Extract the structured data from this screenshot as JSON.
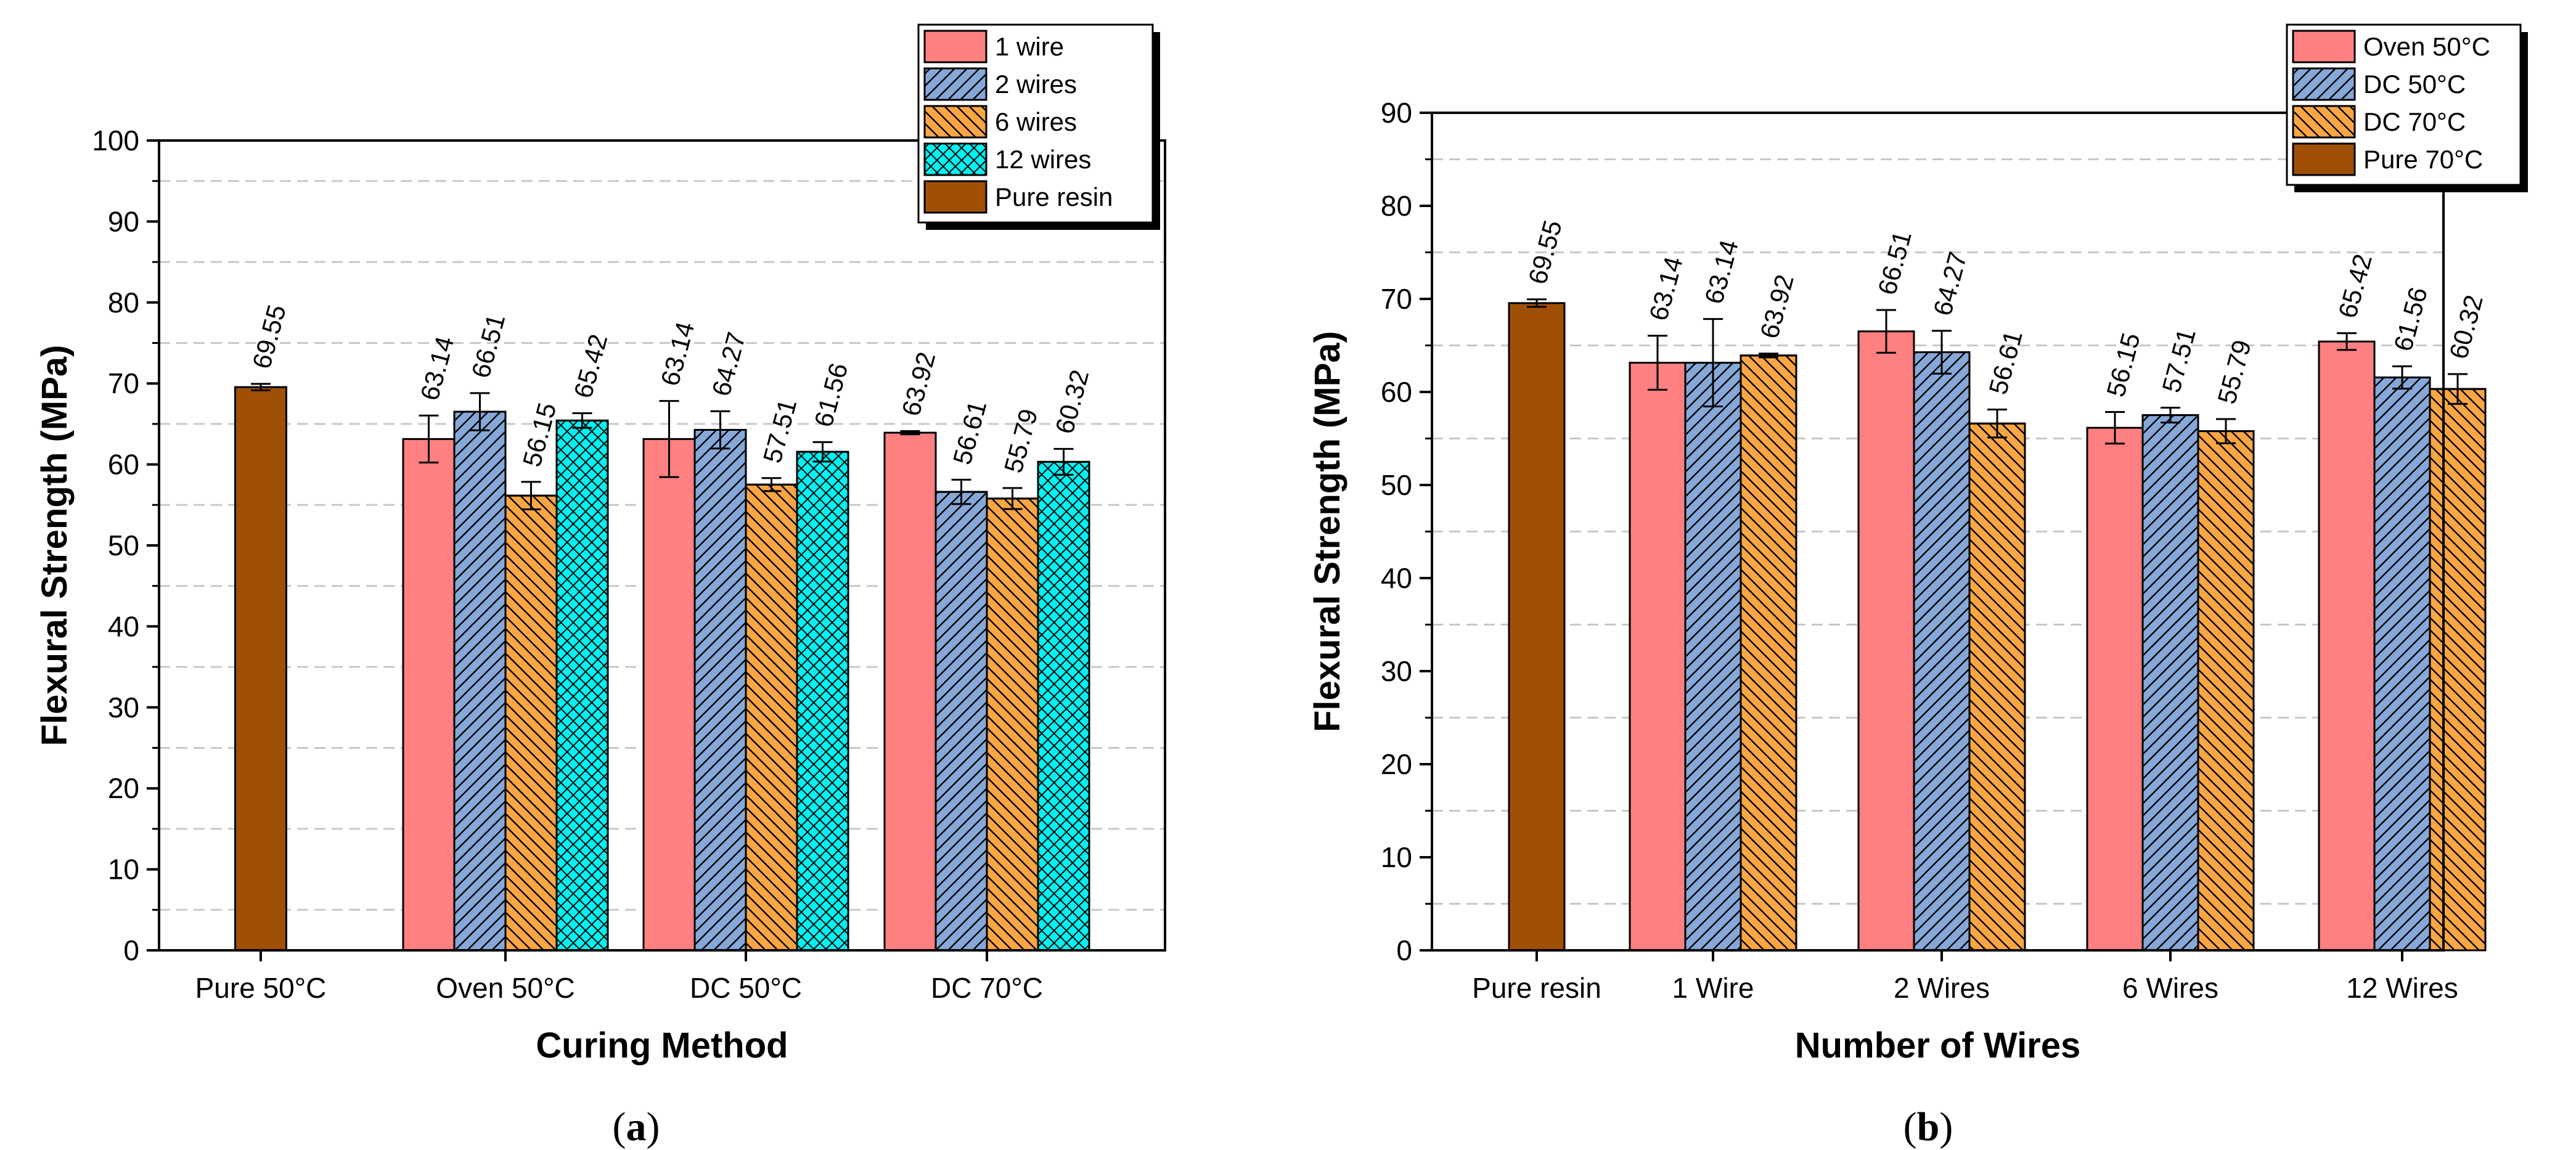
{
  "chart_data": [
    {
      "type": "bar",
      "panel": "a",
      "subfigure_label": "(a)",
      "subfigure_letter": "a",
      "xlabel": "Curing Method",
      "ylabel": "Flexural Strength (MPa)",
      "ylim": [
        0,
        100
      ],
      "ytick_step": 10,
      "grid": "dashed horizontal",
      "legend_position": "top-right",
      "categories": [
        "Pure 50°C",
        "Oven 50°C",
        "DC 50°C",
        "DC 70°C"
      ],
      "series": [
        {
          "name": "1 wire",
          "color": "#fe8080",
          "pattern": "none",
          "values": [
            null,
            63.14,
            63.14,
            63.92
          ],
          "errors": [
            null,
            2.9,
            4.7,
            0.2
          ],
          "labels": [
            "",
            "63.14",
            "63.14",
            "63.92"
          ]
        },
        {
          "name": "2 wires",
          "color": "#86a8d8",
          "pattern": "hatch-right",
          "values": [
            null,
            66.51,
            64.27,
            56.61
          ],
          "errors": [
            null,
            2.3,
            2.3,
            1.5
          ],
          "labels": [
            "",
            "66.51",
            "64.27",
            "56.61"
          ]
        },
        {
          "name": "6 wires",
          "color": "#f9a643",
          "pattern": "hatch-left",
          "values": [
            null,
            56.15,
            57.51,
            55.79
          ],
          "errors": [
            null,
            1.7,
            0.8,
            1.3
          ],
          "labels": [
            "",
            "56.15",
            "57.51",
            "55.79"
          ]
        },
        {
          "name": "12 wires",
          "color": "#00f2f2",
          "pattern": "crosshatch",
          "values": [
            null,
            65.42,
            61.56,
            60.32
          ],
          "errors": [
            null,
            0.9,
            1.2,
            1.6
          ],
          "labels": [
            "",
            "65.42",
            "61.56",
            "60.32"
          ]
        },
        {
          "name": "Pure resin",
          "color": "#a05006",
          "pattern": "none",
          "values": [
            69.55,
            null,
            null,
            null
          ],
          "errors": [
            0.4,
            null,
            null,
            null
          ],
          "labels": [
            "69.55",
            "",
            "",
            ""
          ]
        }
      ]
    },
    {
      "type": "bar",
      "panel": "b",
      "subfigure_label": "(b)",
      "subfigure_letter": "b",
      "xlabel": "Number of Wires",
      "ylabel": "Flexural Strength (MPa)",
      "ylim": [
        0,
        90
      ],
      "ytick_step": 10,
      "grid": "dashed horizontal",
      "legend_position": "top-right",
      "categories": [
        "Pure resin",
        "1 Wire",
        "2 Wires",
        "6 Wires",
        "12 Wires"
      ],
      "series": [
        {
          "name": "Oven 50°C",
          "color": "#fe8080",
          "pattern": "none",
          "values": [
            null,
            63.14,
            66.51,
            56.15,
            65.42
          ],
          "errors": [
            null,
            2.9,
            2.3,
            1.7,
            0.9
          ],
          "labels": [
            "",
            "63.14",
            "66.51",
            "56.15",
            "65.42"
          ]
        },
        {
          "name": "DC 50°C",
          "color": "#86a8d8",
          "pattern": "hatch-right",
          "values": [
            null,
            63.14,
            64.27,
            57.51,
            61.56
          ],
          "errors": [
            null,
            4.7,
            2.3,
            0.8,
            1.2
          ],
          "labels": [
            "",
            "63.14",
            "64.27",
            "57.51",
            "61.56"
          ]
        },
        {
          "name": "DC 70°C",
          "color": "#f9a643",
          "pattern": "hatch-left",
          "values": [
            null,
            63.92,
            56.61,
            55.79,
            60.32
          ],
          "errors": [
            null,
            0.2,
            1.5,
            1.3,
            1.6
          ],
          "labels": [
            "",
            "63.92",
            "56.61",
            "55.79",
            "60.32"
          ]
        },
        {
          "name": "Pure 70°C",
          "color": "#a05006",
          "pattern": "none",
          "values": [
            69.55,
            null,
            null,
            null,
            null
          ],
          "errors": [
            0.4,
            null,
            null,
            null,
            null
          ],
          "labels": [
            "69.55",
            "",
            "",
            "",
            ""
          ]
        }
      ]
    }
  ]
}
